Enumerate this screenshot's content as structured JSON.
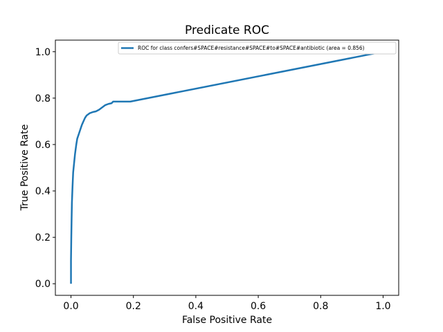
{
  "chart_data": {
    "type": "line",
    "title": "Predicate ROC",
    "xlabel": "False Positive Rate",
    "ylabel": "True Positive Rate",
    "xlim": [
      -0.05,
      1.05
    ],
    "ylim": [
      -0.05,
      1.05
    ],
    "xticks": [
      "0.0",
      "0.2",
      "0.4",
      "0.6",
      "0.8",
      "1.0"
    ],
    "yticks": [
      "0.0",
      "0.2",
      "0.4",
      "0.6",
      "0.8",
      "1.0"
    ],
    "grid": false,
    "legend_position": "top-right",
    "colors": {
      "series": "#1f77b4",
      "axes": "#000000",
      "background": "#ffffff"
    },
    "series": [
      {
        "name": "ROC for class confers#SPACE#resistance#SPACE#to#SPACE#antibiotic (area = 0.856)",
        "x": [
          0.0,
          0.0,
          0.001,
          0.002,
          0.003,
          0.005,
          0.007,
          0.01,
          0.013,
          0.017,
          0.02,
          0.025,
          0.03,
          0.035,
          0.04,
          0.045,
          0.05,
          0.055,
          0.06,
          0.07,
          0.08,
          0.09,
          0.1,
          0.11,
          0.12,
          0.13,
          0.135,
          0.14,
          0.19,
          1.0
        ],
        "y": [
          0.0,
          0.1,
          0.2,
          0.28,
          0.35,
          0.42,
          0.48,
          0.52,
          0.56,
          0.6,
          0.625,
          0.645,
          0.665,
          0.685,
          0.7,
          0.715,
          0.725,
          0.73,
          0.735,
          0.74,
          0.743,
          0.75,
          0.76,
          0.77,
          0.775,
          0.778,
          0.785,
          0.785,
          0.785,
          1.0
        ]
      }
    ]
  }
}
